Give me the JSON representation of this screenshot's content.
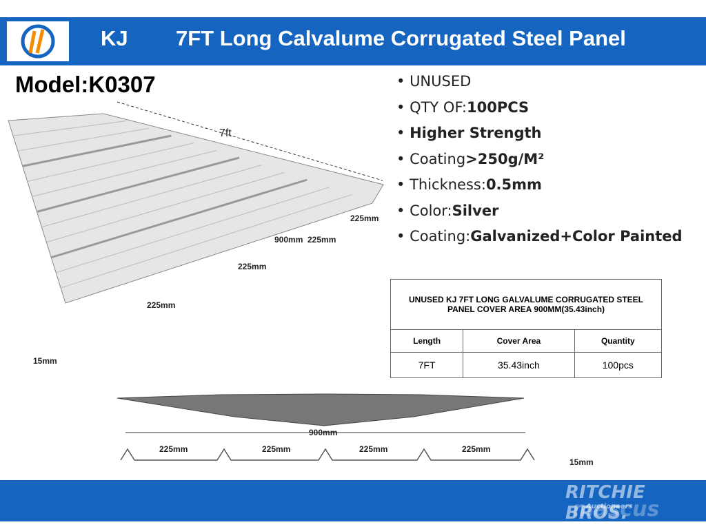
{
  "header": {
    "brand": "KJ",
    "title": "7FT Long Calvalume Corrugated Steel Panel"
  },
  "model": "Model:K0307",
  "features": [
    {
      "text": "UNUSED"
    },
    {
      "text": "QTY OF:",
      "strong": "100PCS"
    },
    {
      "strong": "Higher Strength"
    },
    {
      "text": "Coating",
      "strong": ">250g/M²"
    },
    {
      "text": "Thickness:",
      "strong": "0.5mm"
    },
    {
      "text": "Color:",
      "strong": "Silver"
    },
    {
      "text": "Coating:",
      "strong": "Galvanized+Color Painted"
    }
  ],
  "sheet_labels": [
    "7ft",
    "225mm",
    "900mm",
    "225mm",
    "225mm",
    "225mm",
    "15mm"
  ],
  "profile_labels": [
    "900mm",
    "225mm",
    "225mm",
    "225mm",
    "225mm",
    "15mm"
  ],
  "table": {
    "title": "UNUSED KJ 7FT LONG GALVALUME CORRUGATED STEEL PANEL COVER AREA 900MM(35.43inch)",
    "headers": [
      "Length",
      "Cover Area",
      "Quantity"
    ],
    "rows": [
      [
        "7FT",
        "35.43inch",
        "100pcs"
      ]
    ]
  },
  "watermark": {
    "brand": "RITCHIE BROS.",
    "sub": "Auctioneers",
    "site": "mascus"
  }
}
